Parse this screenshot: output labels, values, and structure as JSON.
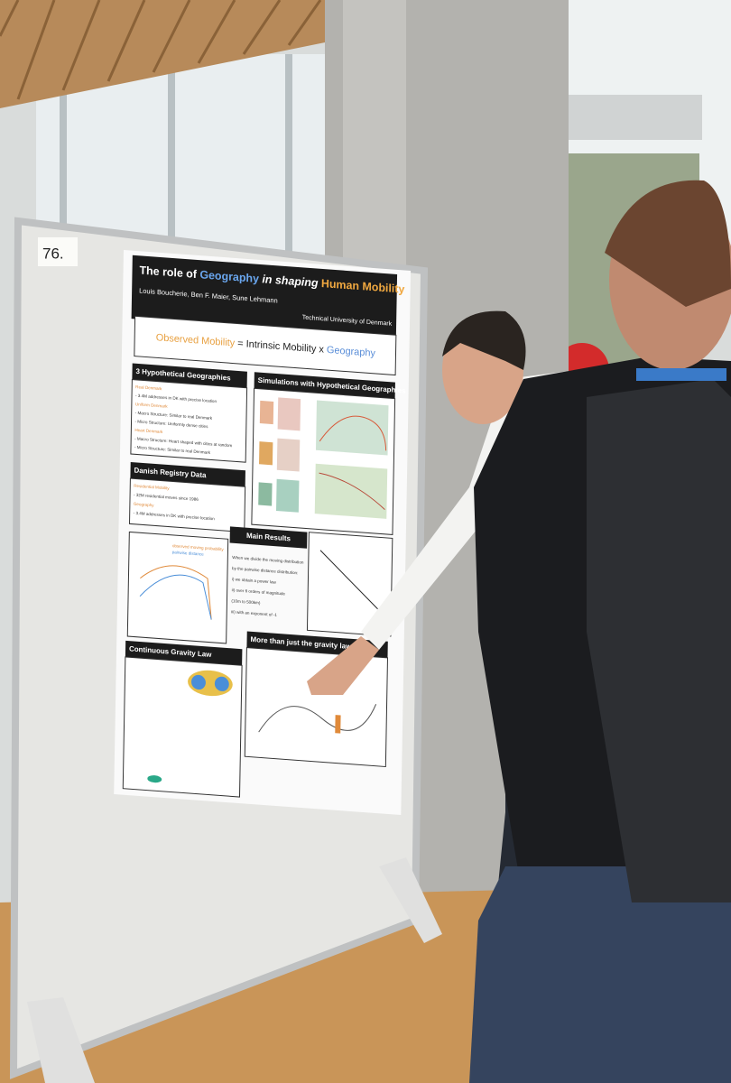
{
  "board_number": "76.",
  "poster": {
    "title": [
      "The role of ",
      "Geography",
      " in shaping ",
      "Human Mobility"
    ],
    "authors": "Louis Boucherie, Ben F. Maier, Sune Lehmann",
    "affiliation": "Technical University of Denmark",
    "equation": [
      "Observed Mobility",
      " = Intrinsic Mobility x ",
      "Geography"
    ],
    "hypothetical": {
      "heading": "3 Hypothetical Geographies",
      "lines": [
        "Real Denmark",
        "- 3.4M addresses in DK with precise location",
        "Uniform Denmark",
        "- Macro Structure: Similar to real Denmark",
        "- Micro Structure: Uniformly dense cities",
        "Heart Denmark",
        "- Macro Structure: Heart shaped with cities at random",
        "- Micro Structure: Similar to real Denmark"
      ]
    },
    "simulations": {
      "heading": "Simulations with Hypothetical Geographies"
    },
    "registry": {
      "heading": "Danish Registry Data",
      "lines": [
        "Residential Mobility",
        "- 32M residential moves since 1986",
        "Geography",
        "- 3.4M addresses in DK with precise location"
      ]
    },
    "legend": [
      "observed moving probability",
      "pairwise distance"
    ],
    "results": {
      "heading": "Main Results",
      "lines": [
        "When we divide the moving distribution",
        "by the pairwise distance distribution:",
        "i) we obtain a power law",
        "ii) over 6 orders of magnitude",
        "(10m to 500km)",
        "iii) with an exponent of -1"
      ]
    },
    "gravity": {
      "heading": "Continuous Gravity Law"
    },
    "beyond": {
      "heading": "More than just the gravity law..."
    }
  }
}
